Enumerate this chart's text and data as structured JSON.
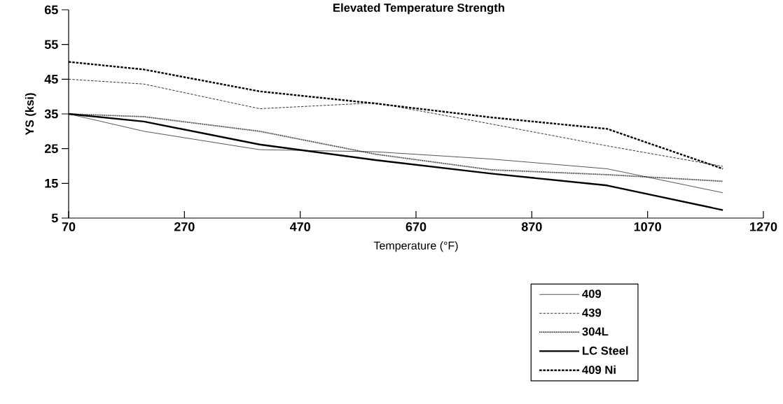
{
  "chart_data": {
    "type": "line",
    "title": "Elevated Temperature Strength",
    "xlabel": "Temperature (°F)",
    "ylabel": "YS (ksi)",
    "x": [
      70,
      200,
      400,
      600,
      800,
      1000,
      1200
    ],
    "series": [
      {
        "name": "409",
        "color": "#000000",
        "line_style": "solid",
        "values": [
          35,
          30.0,
          24.7,
          24.1,
          22.0,
          19.2,
          12.3
        ]
      },
      {
        "name": "439",
        "color": "#000000",
        "line_style": "dashed",
        "values": [
          45,
          43.6,
          36.5,
          38.2,
          32.1,
          25.8,
          19.9
        ]
      },
      {
        "name": "304L",
        "color": "#000000",
        "line_style": "dotted",
        "values": [
          35,
          34.2,
          30.0,
          23.4,
          18.9,
          17.5,
          15.6
        ]
      },
      {
        "name": "LC Steel",
        "color": "#000000",
        "line_style": "solid",
        "values": [
          35,
          32.8,
          26.2,
          21.7,
          17.8,
          14.4,
          7.3
        ]
      },
      {
        "name": "409 Ni",
        "color": "#000000",
        "line_style": "dashed",
        "values": [
          50,
          47.8,
          41.5,
          38.0,
          34.0,
          30.7,
          19.2
        ]
      }
    ],
    "xlim": [
      70,
      1270
    ],
    "xticks": [
      70,
      270,
      470,
      670,
      870,
      1070,
      1270
    ],
    "ylim": [
      5,
      65
    ],
    "yticks": [
      5,
      15,
      25,
      35,
      45,
      55,
      65
    ],
    "legend": "bottom right",
    "marker": "none"
  }
}
